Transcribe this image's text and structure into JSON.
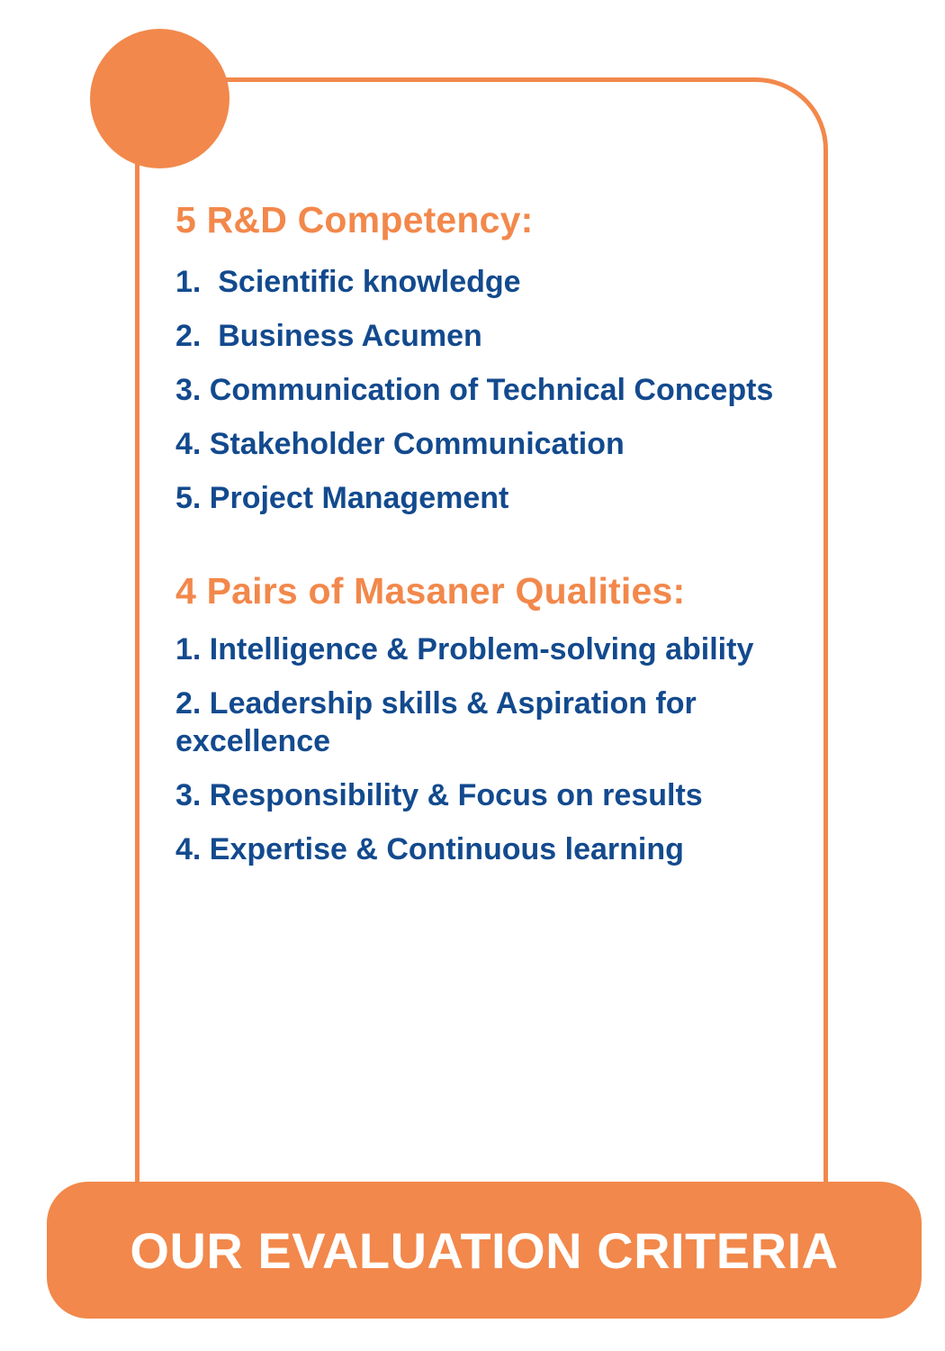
{
  "colors": {
    "accent": "#f2884b",
    "text_primary": "#134a8e",
    "background": "#ffffff"
  },
  "sections": [
    {
      "heading": "5 R&D Competency:",
      "items": [
        "1.  Scientific knowledge",
        "2.  Business Acumen",
        "3. Communication of Technical Concepts",
        "4. Stakeholder Communication",
        "5. Project Management"
      ]
    },
    {
      "heading": "4 Pairs of Masaner Qualities:",
      "items": [
        "1. Intelligence & Problem-solving ability",
        "2. Leadership skills & Aspiration for excellence",
        "3. Responsibility & Focus on results",
        "4. Expertise & Continuous learning"
      ]
    }
  ],
  "banner": {
    "label": "OUR EVALUATION CRITERIA"
  }
}
